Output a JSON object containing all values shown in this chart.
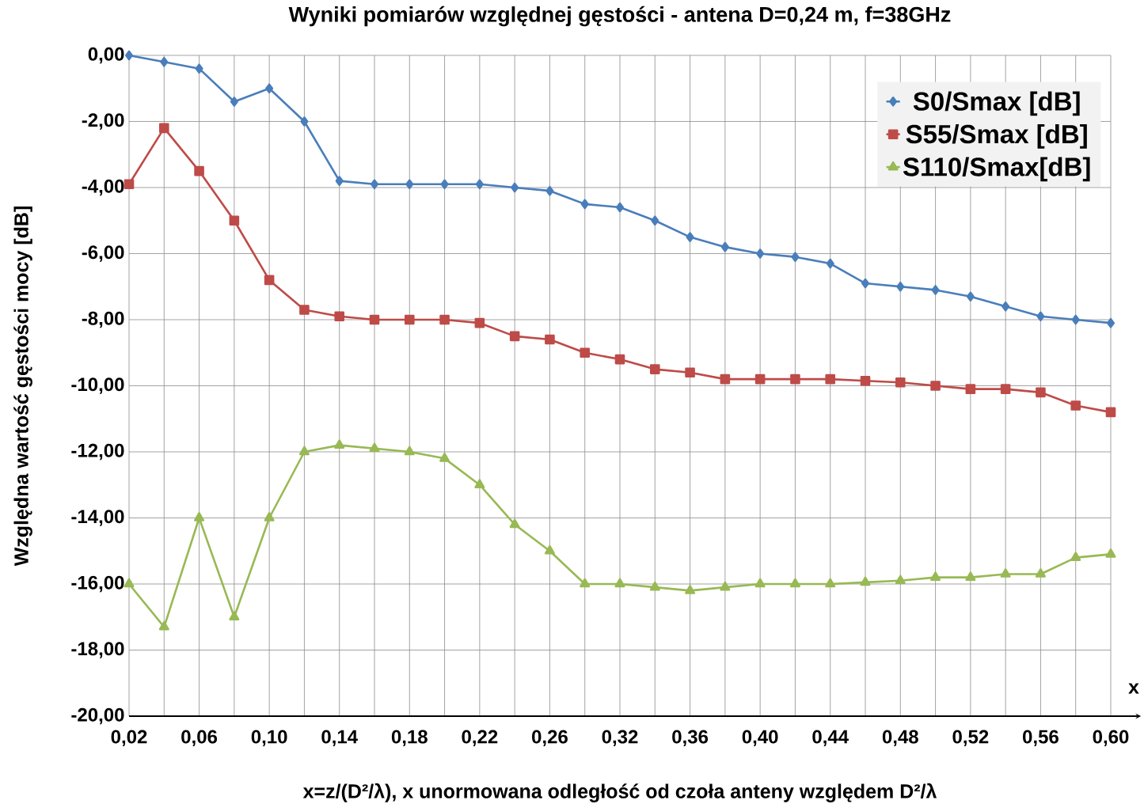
{
  "chart_data": {
    "type": "line",
    "title": "Wyniki pomiarów względnej  gęstości - antena D=0,24 m, f=38GHz",
    "xlabel": "x=z/(D²/λ), x unormowana  odległość  od czoła anteny względem  D²/λ",
    "ylabel": "Względna wartość  gęstości mocy [dB]",
    "annotations": [
      "x"
    ],
    "categories": [
      "0,02",
      null,
      "0,06",
      null,
      "0,10",
      null,
      "0,14",
      null,
      "0,18",
      null,
      "0,22",
      null,
      "0,26",
      null,
      "0,32",
      null,
      "0,36",
      null,
      "0,40",
      null,
      "0,44",
      null,
      "0,48",
      null,
      "0,52",
      null,
      "0,56",
      null,
      "0,60"
    ],
    "series": [
      {
        "name": "S0/Smax [dB]",
        "color": "#4a7ebb",
        "marker": "diamond",
        "values": [
          0,
          -0.2,
          -0.4,
          -1.4,
          -1.0,
          -2.0,
          -3.8,
          -3.9,
          -3.9,
          -3.9,
          -3.9,
          -4.0,
          -4.1,
          -4.5,
          -4.6,
          -5.0,
          -5.5,
          -5.8,
          -6.0,
          -6.1,
          -6.3,
          -6.9,
          -7.0,
          -7.1,
          -7.3,
          -7.6,
          -7.9,
          -8.0,
          -8.1
        ]
      },
      {
        "name": "S55/Smax [dB]",
        "color": "#be4b48",
        "marker": "square",
        "values": [
          -3.9,
          -2.2,
          -3.5,
          -5.0,
          -6.8,
          -7.7,
          -7.9,
          -8.0,
          -8.0,
          -8.0,
          -8.1,
          -8.5,
          -8.6,
          -9.0,
          -9.2,
          -9.5,
          -9.6,
          -9.8,
          -9.8,
          -9.8,
          -9.8,
          -9.85,
          -9.9,
          -10.0,
          -10.1,
          -10.1,
          -10.2,
          -10.6,
          -10.8
        ]
      },
      {
        "name": "S110/Smax[dB]",
        "color": "#98b954",
        "marker": "triangle",
        "values": [
          -16.0,
          -17.3,
          -14.0,
          -17.0,
          -14.0,
          -12.0,
          -11.8,
          -11.9,
          -12.0,
          -12.2,
          -13.0,
          -14.2,
          -15.0,
          -16.0,
          -16.0,
          -16.1,
          -16.2,
          -16.1,
          -16.0,
          -16.0,
          -16.0,
          -15.95,
          -15.9,
          -15.8,
          -15.8,
          -15.7,
          -15.7,
          -15.2,
          -15.1
        ]
      }
    ],
    "ylim": [
      -20,
      0
    ],
    "yticks": [
      {
        "value": -20,
        "label": "-20,00"
      },
      {
        "value": -18,
        "label": "-18,00"
      },
      {
        "value": -16,
        "label": "-16,00"
      },
      {
        "value": -14,
        "label": "-14,00"
      },
      {
        "value": -12,
        "label": "-12,00"
      },
      {
        "value": -10,
        "label": "-10,00"
      },
      {
        "value": -8,
        "label": "-8,00"
      },
      {
        "value": -6,
        "label": "-6,00"
      },
      {
        "value": -4,
        "label": "-4,00"
      },
      {
        "value": -2,
        "label": "-2,00"
      },
      {
        "value": 0,
        "label": "0,00"
      }
    ],
    "grid": true,
    "legend": "top right"
  }
}
